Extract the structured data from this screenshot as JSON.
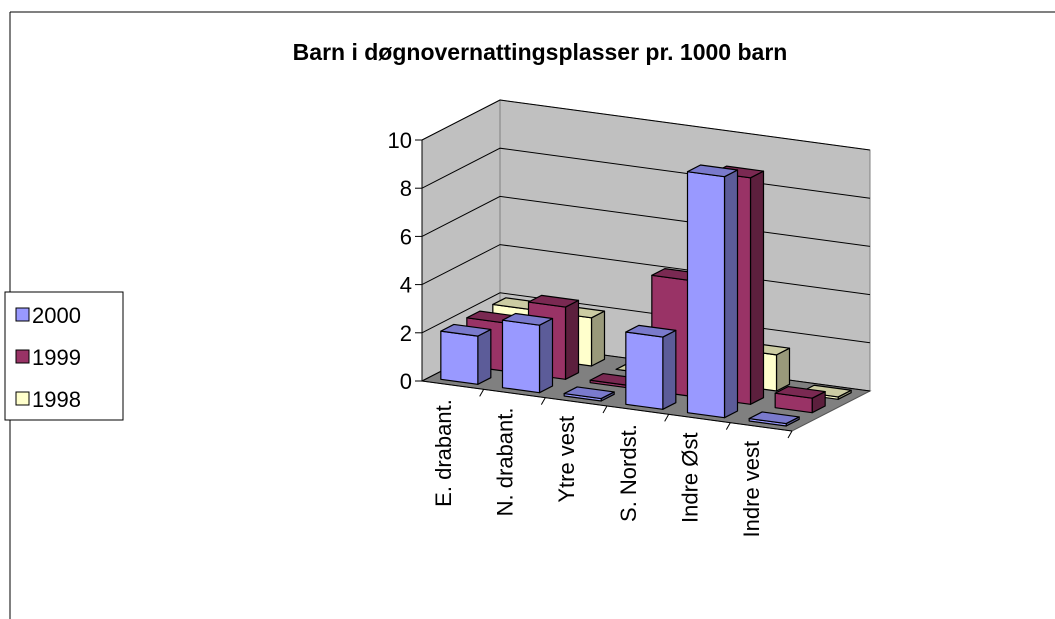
{
  "chart_data": {
    "type": "bar3d",
    "title": "Barn i døgnovernattingsplasser pr. 1000 barn",
    "categories": [
      "E. drabant.",
      "N. drabant.",
      "Ytre vest",
      "S. Nordst.",
      "Indre Øst",
      "Indre vest"
    ],
    "series": [
      {
        "name": "2000",
        "color": "#9999ff",
        "values": [
          2.0,
          2.8,
          0.1,
          3.0,
          10.0,
          0.1
        ]
      },
      {
        "name": "1999",
        "color": "#993366",
        "values": [
          2.0,
          3.0,
          0.1,
          4.8,
          9.4,
          0.6
        ]
      },
      {
        "name": "1998",
        "color": "#ffffcc",
        "values": [
          2.0,
          2.0,
          0.0,
          1.0,
          1.5,
          0.1
        ]
      }
    ],
    "ylim": [
      0,
      10
    ],
    "yticks": [
      0,
      2,
      4,
      6,
      8,
      10
    ],
    "grid": true,
    "legend": "left"
  }
}
